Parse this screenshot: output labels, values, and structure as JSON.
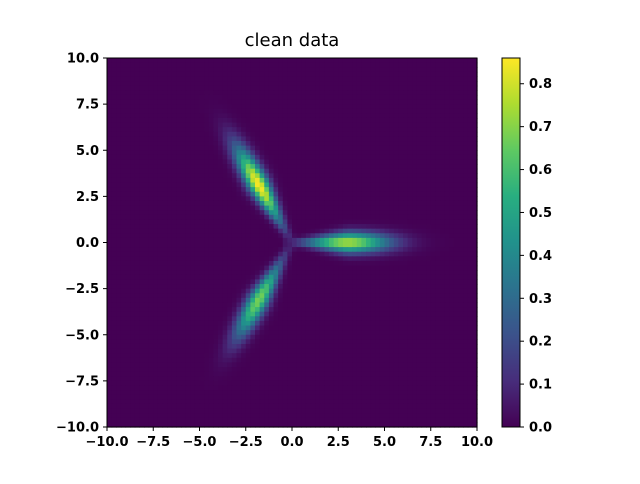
{
  "chart_data": {
    "type": "heatmap",
    "title": "clean data",
    "xlabel": "",
    "ylabel": "",
    "xlim": [
      -10,
      10
    ],
    "ylim": [
      -10,
      10
    ],
    "x_ticks": [
      "−10.0",
      "−7.5",
      "−5.0",
      "−2.5",
      "0.0",
      "2.5",
      "5.0",
      "7.5",
      "10.0"
    ],
    "y_ticks": [
      "10.0",
      "7.5",
      "5.0",
      "2.5",
      "0.0",
      "−2.5",
      "−5.0",
      "−7.5",
      "−10.0"
    ],
    "x_tick_values": [
      -10,
      -7.5,
      -5,
      -2.5,
      0,
      2.5,
      5,
      7.5,
      10
    ],
    "y_tick_values": [
      10,
      7.5,
      5,
      2.5,
      0,
      -2.5,
      -5,
      -7.5,
      -10
    ],
    "colormap": "viridis",
    "colorbar": {
      "range": [
        0,
        0.86
      ],
      "ticks": [
        "0.0",
        "0.1",
        "0.2",
        "0.3",
        "0.4",
        "0.5",
        "0.6",
        "0.7",
        "0.8"
      ],
      "tick_values": [
        0,
        0.1,
        0.2,
        0.3,
        0.4,
        0.5,
        0.6,
        0.7,
        0.8
      ]
    },
    "grid_resolution": 80,
    "arms": [
      {
        "angle_deg": 0,
        "peak_distance": 3.0,
        "peak_value": 0.75,
        "length_spread": 1.6,
        "width_spread": 0.38
      },
      {
        "angle_deg": 120,
        "peak_distance": 3.6,
        "peak_value": 0.86,
        "length_spread": 1.6,
        "width_spread": 0.38
      },
      {
        "angle_deg": 240,
        "peak_distance": 3.6,
        "peak_value": 0.68,
        "length_spread": 1.6,
        "width_spread": 0.38
      }
    ],
    "grid": false,
    "background_color": "#440154"
  }
}
